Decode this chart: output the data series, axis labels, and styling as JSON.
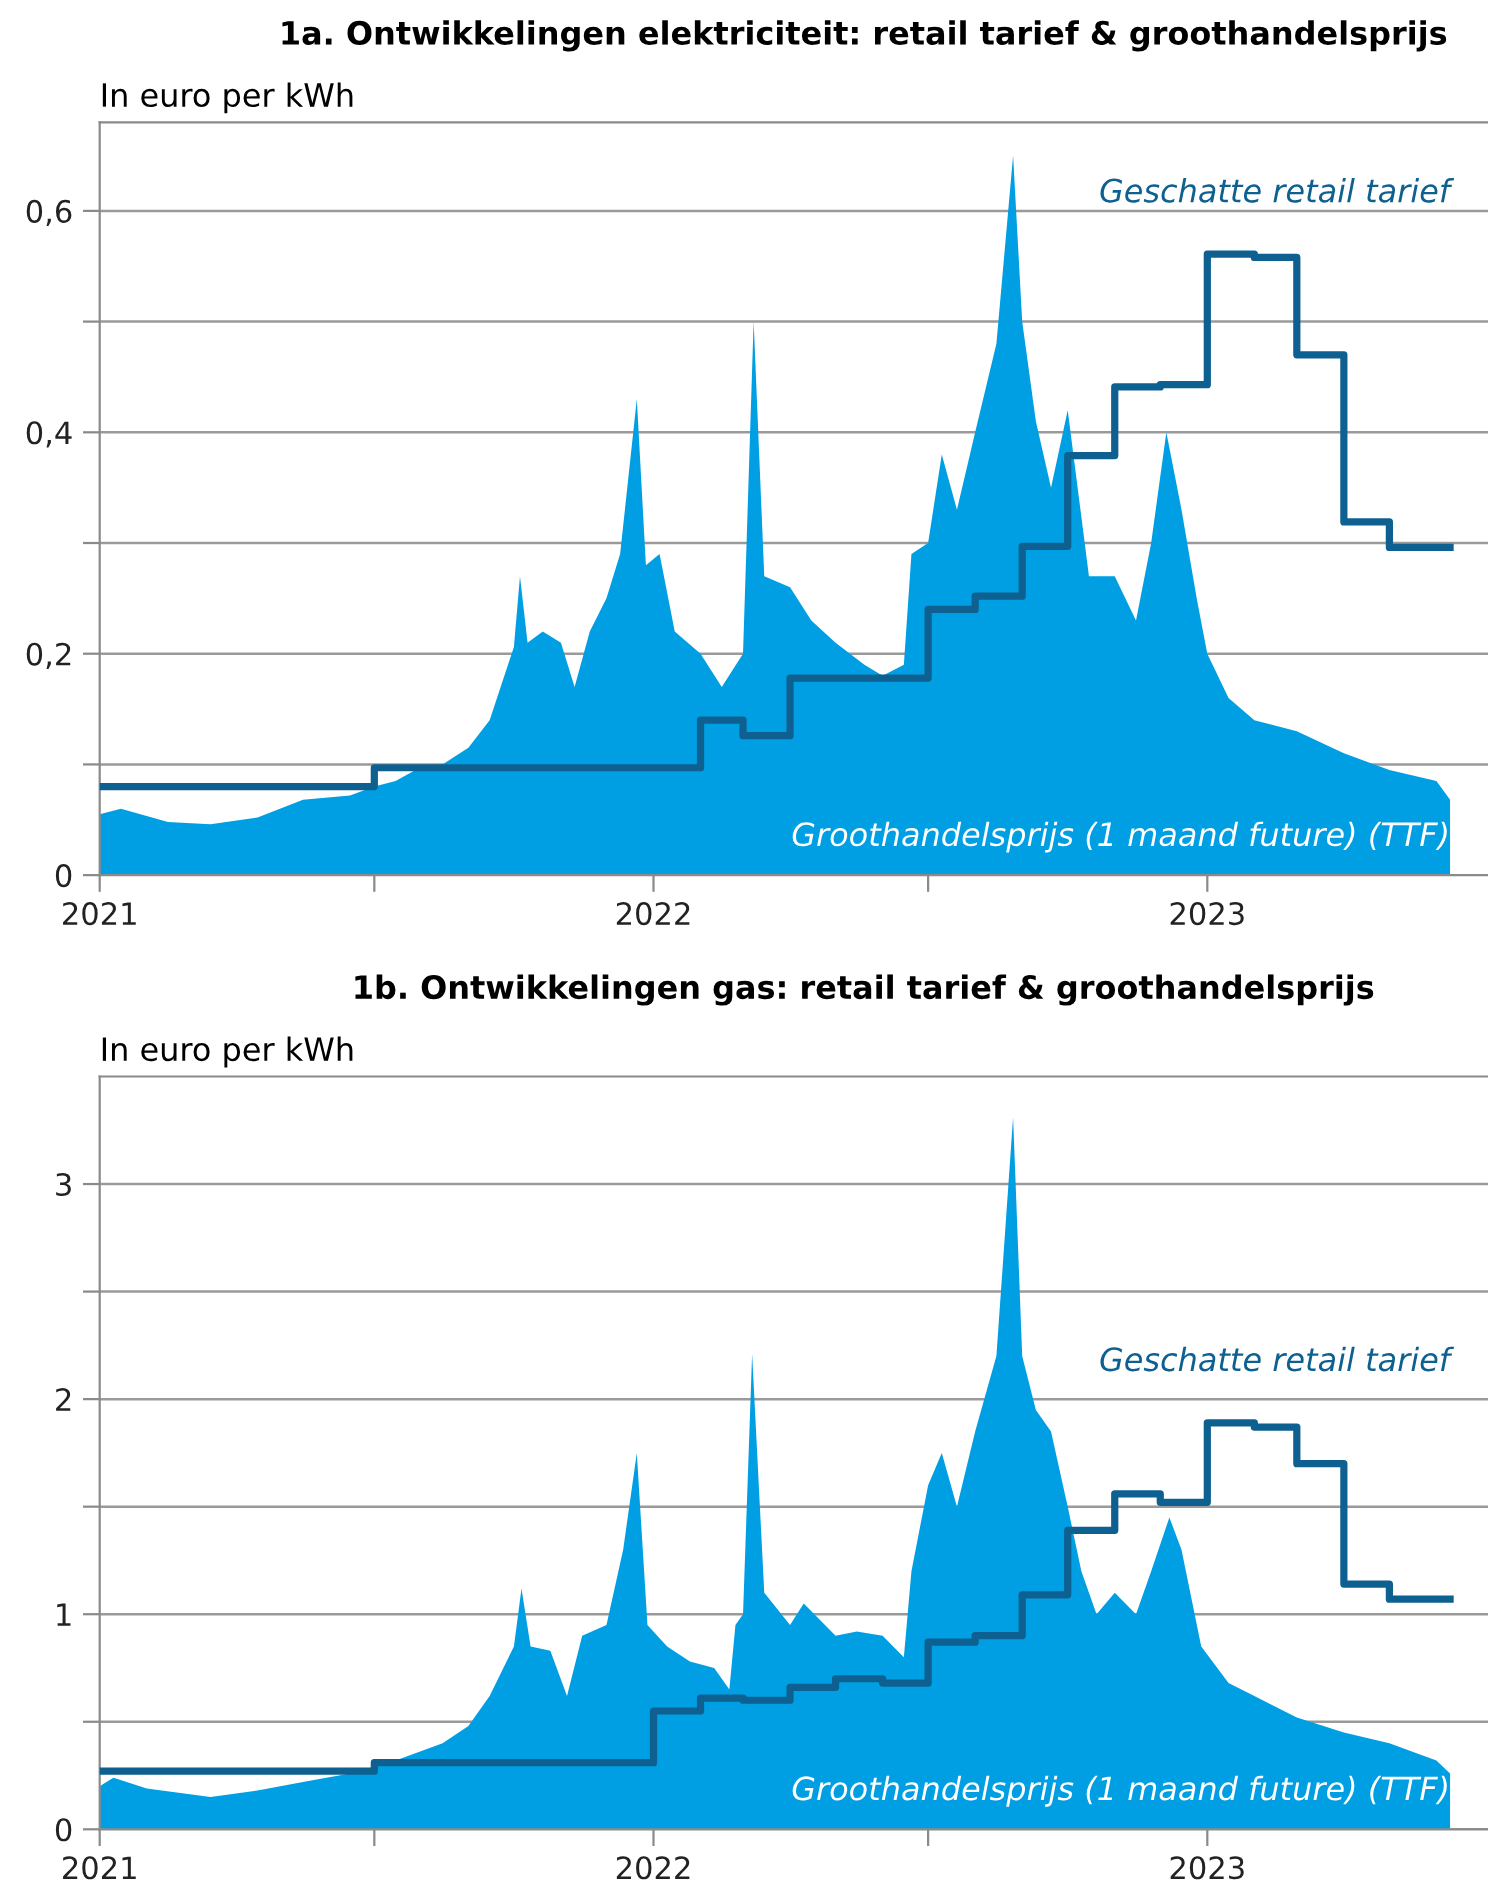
{
  "chart_data": [
    {
      "type": "area",
      "title": "1a. Ontwikkelingen elektriciteit: retail tarief & groothandelsprijs",
      "ylabel": "In euro per kWh",
      "xlim": [
        "2021-01-01",
        "2023-07-05"
      ],
      "xticks": [
        {
          "value": "2021-01-01",
          "label": "2021"
        },
        {
          "value": "2021-07-01",
          "label": null
        },
        {
          "value": "2022-01-01",
          "label": "2022"
        },
        {
          "value": "2022-07-01",
          "label": null
        },
        {
          "value": "2023-01-01",
          "label": "2023"
        }
      ],
      "ylim": [
        0,
        0.68
      ],
      "yticks": [
        {
          "value": 0,
          "label": "0"
        },
        {
          "value": 0.1,
          "label": null
        },
        {
          "value": 0.2,
          "label": "0,2"
        },
        {
          "value": 0.3,
          "label": null
        },
        {
          "value": 0.4,
          "label": "0,4"
        },
        {
          "value": 0.5,
          "label": null
        },
        {
          "value": 0.6,
          "label": "0,6"
        }
      ],
      "grid": "y",
      "series": [
        {
          "name": "Groothandelsprijs (1 maand future) (TTF)",
          "color": "#009fe3",
          "x": [
            "2021-01-01",
            "2021-01-15",
            "2021-02-15",
            "2021-03-15",
            "2021-04-15",
            "2021-05-15",
            "2021-06-15",
            "2021-07-01",
            "2021-07-15",
            "2021-08-01",
            "2021-08-15",
            "2021-09-01",
            "2021-09-15",
            "2021-10-01",
            "2021-10-05",
            "2021-10-10",
            "2021-10-20",
            "2021-11-01",
            "2021-11-10",
            "2021-11-20",
            "2021-12-01",
            "2021-12-10",
            "2021-12-21",
            "2021-12-27",
            "2022-01-05",
            "2022-01-15",
            "2022-02-01",
            "2022-02-15",
            "2022-03-01",
            "2022-03-08",
            "2022-03-15",
            "2022-04-01",
            "2022-04-15",
            "2022-05-01",
            "2022-05-20",
            "2022-06-01",
            "2022-06-15",
            "2022-06-20",
            "2022-07-01",
            "2022-07-10",
            "2022-07-20",
            "2022-08-01",
            "2022-08-15",
            "2022-08-26",
            "2022-09-01",
            "2022-09-10",
            "2022-09-20",
            "2022-10-01",
            "2022-10-15",
            "2022-11-01",
            "2022-11-15",
            "2022-11-25",
            "2022-12-05",
            "2022-12-15",
            "2022-12-25",
            "2023-01-01",
            "2023-01-15",
            "2023-02-01",
            "2023-03-01",
            "2023-04-01",
            "2023-05-01",
            "2023-06-01",
            "2023-06-10"
          ],
          "values": [
            0.055,
            0.06,
            0.048,
            0.046,
            0.052,
            0.068,
            0.072,
            0.08,
            0.085,
            0.098,
            0.1,
            0.115,
            0.14,
            0.206,
            0.27,
            0.21,
            0.22,
            0.21,
            0.17,
            0.22,
            0.25,
            0.29,
            0.43,
            0.28,
            0.29,
            0.22,
            0.2,
            0.17,
            0.2,
            0.5,
            0.27,
            0.26,
            0.23,
            0.21,
            0.19,
            0.18,
            0.19,
            0.29,
            0.3,
            0.38,
            0.33,
            0.4,
            0.48,
            0.65,
            0.5,
            0.41,
            0.35,
            0.42,
            0.27,
            0.27,
            0.23,
            0.3,
            0.4,
            0.33,
            0.25,
            0.2,
            0.16,
            0.14,
            0.13,
            0.11,
            0.095,
            0.085,
            0.068
          ]
        },
        {
          "name": "Geschatte retail tarief",
          "type": "step",
          "color": "#0e6090",
          "x": [
            "2021-01-01",
            "2021-07-01",
            "2022-02-01",
            "2022-03-01",
            "2022-04-01",
            "2022-07-01",
            "2022-08-01",
            "2022-09-01",
            "2022-10-01",
            "2022-11-01",
            "2022-12-01",
            "2023-01-01",
            "2023-02-01",
            "2023-03-01",
            "2023-04-01",
            "2023-05-01",
            "2023-06-10"
          ],
          "values": [
            0.08,
            0.097,
            0.14,
            0.126,
            0.178,
            0.24,
            0.252,
            0.297,
            0.379,
            0.441,
            0.443,
            0.561,
            0.558,
            0.47,
            0.319,
            0.296,
            0.296
          ]
        }
      ]
    },
    {
      "type": "area",
      "title": "1b. Ontwikkelingen gas: retail tarief & groothandelsprijs",
      "ylabel": "In euro per kWh",
      "xlim": [
        "2021-01-01",
        "2023-07-05"
      ],
      "xticks": [
        {
          "value": "2021-01-01",
          "label": "2021"
        },
        {
          "value": "2021-07-01",
          "label": null
        },
        {
          "value": "2022-01-01",
          "label": "2022"
        },
        {
          "value": "2022-07-01",
          "label": null
        },
        {
          "value": "2023-01-01",
          "label": "2023"
        }
      ],
      "ylim": [
        0,
        3.5
      ],
      "yticks": [
        0,
        {
          "value": 0.5,
          "label": null
        },
        1,
        {
          "value": 1.5,
          "label": null
        },
        2,
        {
          "value": 2.5,
          "label": null
        },
        3
      ],
      "grid": "y",
      "series": [
        {
          "name": "Groothandelsprijs (1 maand future) (TTF)",
          "color": "#009fe3",
          "x": [
            "2021-01-01",
            "2021-01-10",
            "2021-02-01",
            "2021-03-15",
            "2021-04-15",
            "2021-05-15",
            "2021-06-15",
            "2021-07-15",
            "2021-08-15",
            "2021-09-01",
            "2021-09-15",
            "2021-10-01",
            "2021-10-06",
            "2021-10-12",
            "2021-10-25",
            "2021-11-05",
            "2021-11-15",
            "2021-12-01",
            "2021-12-12",
            "2021-12-21",
            "2021-12-28",
            "2022-01-10",
            "2022-01-25",
            "2022-02-10",
            "2022-02-20",
            "2022-02-24",
            "2022-03-01",
            "2022-03-07",
            "2022-03-15",
            "2022-04-01",
            "2022-04-10",
            "2022-05-01",
            "2022-05-15",
            "2022-06-01",
            "2022-06-15",
            "2022-06-20",
            "2022-07-01",
            "2022-07-10",
            "2022-07-20",
            "2022-08-01",
            "2022-08-15",
            "2022-08-26",
            "2022-09-01",
            "2022-09-10",
            "2022-09-20",
            "2022-10-01",
            "2022-10-10",
            "2022-10-20",
            "2022-11-01",
            "2022-11-15",
            "2022-11-25",
            "2022-12-07",
            "2022-12-15",
            "2022-12-28",
            "2023-01-15",
            "2023-02-01",
            "2023-03-01",
            "2023-04-01",
            "2023-05-01",
            "2023-06-01",
            "2023-06-10"
          ],
          "values": [
            0.2,
            0.24,
            0.19,
            0.15,
            0.18,
            0.22,
            0.26,
            0.32,
            0.4,
            0.48,
            0.62,
            0.85,
            1.12,
            0.85,
            0.83,
            0.62,
            0.9,
            0.95,
            1.3,
            1.75,
            0.95,
            0.85,
            0.78,
            0.75,
            0.65,
            0.95,
            1.0,
            2.21,
            1.1,
            0.95,
            1.05,
            0.9,
            0.92,
            0.9,
            0.8,
            1.2,
            1.6,
            1.75,
            1.5,
            1.85,
            2.2,
            3.31,
            2.2,
            1.95,
            1.85,
            1.5,
            1.2,
            1.0,
            1.1,
            1.0,
            1.2,
            1.45,
            1.3,
            0.85,
            0.68,
            0.62,
            0.52,
            0.45,
            0.4,
            0.32,
            0.26
          ]
        },
        {
          "name": "Geschatte retail tarief",
          "type": "step",
          "color": "#0e6090",
          "x": [
            "2021-01-01",
            "2021-07-01",
            "2022-01-01",
            "2022-02-01",
            "2022-03-01",
            "2022-04-01",
            "2022-05-01",
            "2022-06-01",
            "2022-07-01",
            "2022-08-01",
            "2022-09-01",
            "2022-10-01",
            "2022-11-01",
            "2022-12-01",
            "2023-01-01",
            "2023-02-01",
            "2023-03-01",
            "2023-04-01",
            "2023-05-01",
            "2023-06-10"
          ],
          "values": [
            0.27,
            0.31,
            0.55,
            0.61,
            0.6,
            0.66,
            0.7,
            0.68,
            0.87,
            0.9,
            1.09,
            1.39,
            1.56,
            1.52,
            1.89,
            1.87,
            1.7,
            1.14,
            1.07,
            1.07
          ]
        }
      ]
    }
  ]
}
